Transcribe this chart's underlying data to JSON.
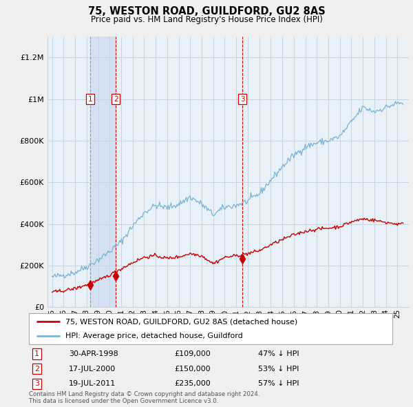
{
  "title": "75, WESTON ROAD, GUILDFORD, GU2 8AS",
  "subtitle": "Price paid vs. HM Land Registry's House Price Index (HPI)",
  "ylim": [
    0,
    1300000
  ],
  "yticks": [
    0,
    200000,
    400000,
    600000,
    800000,
    1000000,
    1200000
  ],
  "hpi_color": "#7ab3d4",
  "price_color": "#cc0000",
  "sale_points": [
    {
      "date_num": 1998.33,
      "price": 109000,
      "label": "1",
      "date_str": "30-APR-1998",
      "pct": "47% ↓ HPI"
    },
    {
      "date_num": 2000.54,
      "price": 150000,
      "label": "2",
      "date_str": "17-JUL-2000",
      "pct": "53% ↓ HPI"
    },
    {
      "date_num": 2011.54,
      "price": 235000,
      "label": "3",
      "date_str": "19-JUL-2011",
      "pct": "57% ↓ HPI"
    }
  ],
  "legend_label_price": "75, WESTON ROAD, GUILDFORD, GU2 8AS (detached house)",
  "legend_label_hpi": "HPI: Average price, detached house, Guildford",
  "footer1": "Contains HM Land Registry data © Crown copyright and database right 2024.",
  "footer2": "This data is licensed under the Open Government Licence v3.0.",
  "background_color": "#f0f0f0",
  "plot_bg_color": "#e8f0f8",
  "grid_color": "#c8d4e0"
}
